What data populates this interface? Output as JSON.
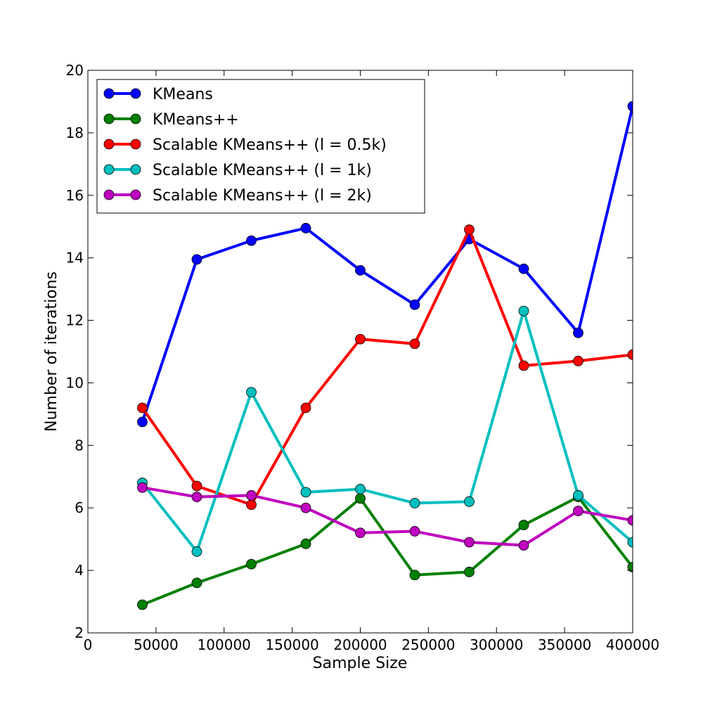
{
  "chart_data": {
    "type": "line",
    "title": "",
    "xlabel": "Sample Size",
    "ylabel": "Number of iterations",
    "xlim": [
      0,
      400000
    ],
    "ylim": [
      2,
      20
    ],
    "xticks": [
      0,
      50000,
      100000,
      150000,
      200000,
      250000,
      300000,
      350000,
      400000
    ],
    "yticks": [
      2,
      4,
      6,
      8,
      10,
      12,
      14,
      16,
      18,
      20
    ],
    "grid": false,
    "legend_position": "top-left",
    "x": [
      40000,
      80000,
      120000,
      160000,
      200000,
      240000,
      280000,
      320000,
      360000,
      400000
    ],
    "series": [
      {
        "name": "KMeans",
        "color": "#0000ff",
        "values": [
          8.75,
          13.95,
          14.55,
          14.95,
          13.6,
          12.5,
          14.6,
          13.65,
          11.6,
          18.85
        ]
      },
      {
        "name": "KMeans++",
        "color": "#008000",
        "values": [
          2.9,
          3.6,
          4.2,
          4.85,
          6.3,
          3.85,
          3.95,
          5.45,
          6.35,
          4.1
        ]
      },
      {
        "name": "Scalable KMeans++ (l = 0.5k)",
        "color": "#ff0000",
        "values": [
          9.2,
          6.7,
          6.1,
          9.2,
          11.4,
          11.25,
          14.9,
          10.55,
          10.7,
          10.9
        ]
      },
      {
        "name": "Scalable KMeans++ (l = 1k)",
        "color": "#00bfbf",
        "values": [
          6.8,
          4.6,
          9.7,
          6.5,
          6.6,
          6.15,
          6.2,
          12.3,
          6.4,
          4.9
        ]
      },
      {
        "name": "Scalable KMeans++ (l = 2k)",
        "color": "#bf00bf",
        "values": [
          6.65,
          6.35,
          6.4,
          6.0,
          5.2,
          5.25,
          4.9,
          4.8,
          5.9,
          5.6
        ]
      }
    ]
  }
}
